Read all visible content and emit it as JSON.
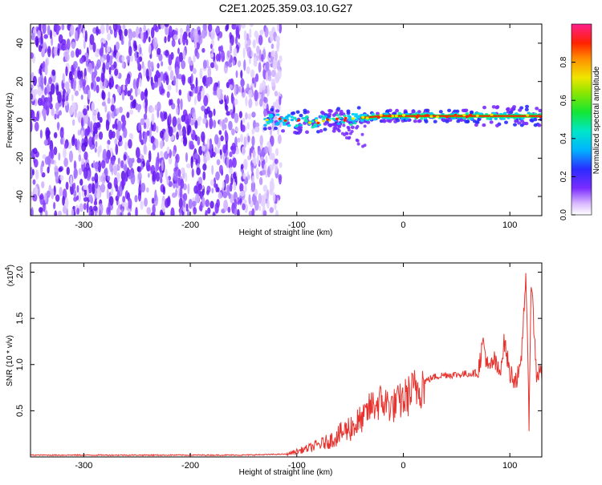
{
  "title": "C2E1.2025.359.03.10.G27",
  "chart_data": [
    {
      "type": "heatmap",
      "title": "C2E1.2025.359.03.10.G27",
      "xlabel": "Height of straight line (km)",
      "ylabel": "Frequency (Hz)",
      "xlim": [
        -350,
        130
      ],
      "ylim": [
        -50,
        50
      ],
      "xticks": [
        -300,
        -200,
        -100,
        0,
        100
      ],
      "yticks": [
        -40,
        -20,
        0,
        20,
        40
      ],
      "colorbar": {
        "label": "Normalized spectral amplitude",
        "range": [
          0,
          1
        ],
        "ticks": [
          "0.0",
          "0.2",
          "0.4",
          "0.6",
          "0.8"
        ]
      },
      "noise_region_x": [
        -350,
        -115
      ],
      "signal_line": {
        "x": [
          -130,
          -115,
          -100,
          -80,
          -60,
          -40,
          -20,
          0,
          50,
          100,
          130
        ],
        "freq_hz": [
          0,
          0,
          -1,
          -1,
          0,
          1,
          2,
          2,
          2,
          2,
          2
        ]
      },
      "grid": false
    },
    {
      "type": "line",
      "xlabel": "Height of straight line (km)",
      "ylabel": "SNR (10 * v/v)",
      "y_scale_label": "(x10",
      "y_scale_exp": "4",
      "y_scale_close": ")",
      "xlim": [
        -350,
        130
      ],
      "ylim": [
        0,
        2.1
      ],
      "xticks": [
        -300,
        -200,
        -100,
        0,
        100
      ],
      "yticks": [
        "0.5",
        "1.0",
        "1.5",
        "2.0"
      ],
      "series_color": "#e8322d",
      "x": [
        -350,
        -300,
        -250,
        -200,
        -150,
        -110,
        -100,
        -90,
        -80,
        -70,
        -60,
        -50,
        -40,
        -30,
        -20,
        -10,
        0,
        10,
        20,
        30,
        40,
        50,
        60,
        70,
        75,
        80,
        85,
        90,
        95,
        100,
        105,
        110,
        115,
        118,
        120,
        125,
        130
      ],
      "y": [
        0.02,
        0.02,
        0.02,
        0.02,
        0.02,
        0.03,
        0.06,
        0.09,
        0.13,
        0.17,
        0.24,
        0.32,
        0.38,
        0.55,
        0.6,
        0.55,
        0.62,
        0.72,
        0.82,
        0.87,
        0.89,
        0.89,
        0.9,
        0.91,
        1.25,
        0.92,
        1.05,
        0.9,
        1.25,
        0.9,
        0.85,
        0.9,
        2.0,
        0.4,
        1.95,
        0.9,
        0.92
      ],
      "grid": false
    }
  ]
}
